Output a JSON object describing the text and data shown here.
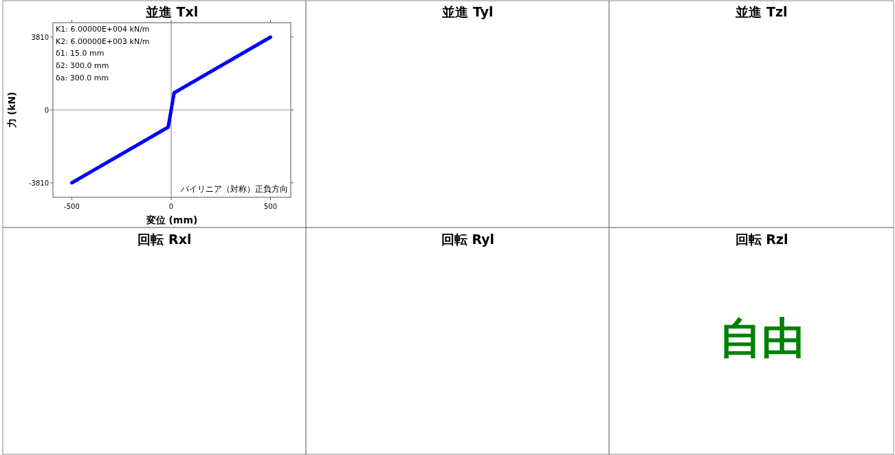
{
  "chart_data": [
    {
      "type": "line",
      "title": "並進 Txl",
      "xlabel": "変位 (mm)",
      "ylabel": "力 (kN)",
      "series": [
        {
          "color": "#0000ff",
          "x": [
            -500,
            -15,
            15,
            500
          ],
          "values": [
            -3810,
            -900,
            900,
            3810
          ]
        }
      ],
      "xlim": [
        -595,
        602
      ],
      "ylim": [
        -4565,
        4565
      ],
      "xticks": [
        -500,
        0,
        500
      ],
      "yticks": [
        -3810,
        0,
        3810
      ],
      "grid": false,
      "marker": "none",
      "line_style": "solid",
      "ref_lines": [
        {
          "axis": "x",
          "value": 0,
          "color": "#7a7a7a"
        },
        {
          "axis": "y",
          "value": 0,
          "color": "#9a9a9a"
        }
      ],
      "annotations": [
        "K1: 6.00000E+004 kN/m",
        "K2: 6.00000E+003 kN/m",
        "δ1: 15.0 mm",
        "δ2: 300.0 mm",
        "δa: 300.0 mm",
        "バイリニア（対称）正負方向"
      ]
    },
    {
      "type": "other",
      "title": "並進 Tyl"
    },
    {
      "type": "other",
      "title": "並進 Tzl"
    },
    {
      "type": "other",
      "title": "回転 Rxl"
    },
    {
      "type": "other",
      "title": "回転 Ryl"
    },
    {
      "type": "other",
      "title": "回転 Rzl",
      "annotations": [
        "自由"
      ]
    }
  ]
}
